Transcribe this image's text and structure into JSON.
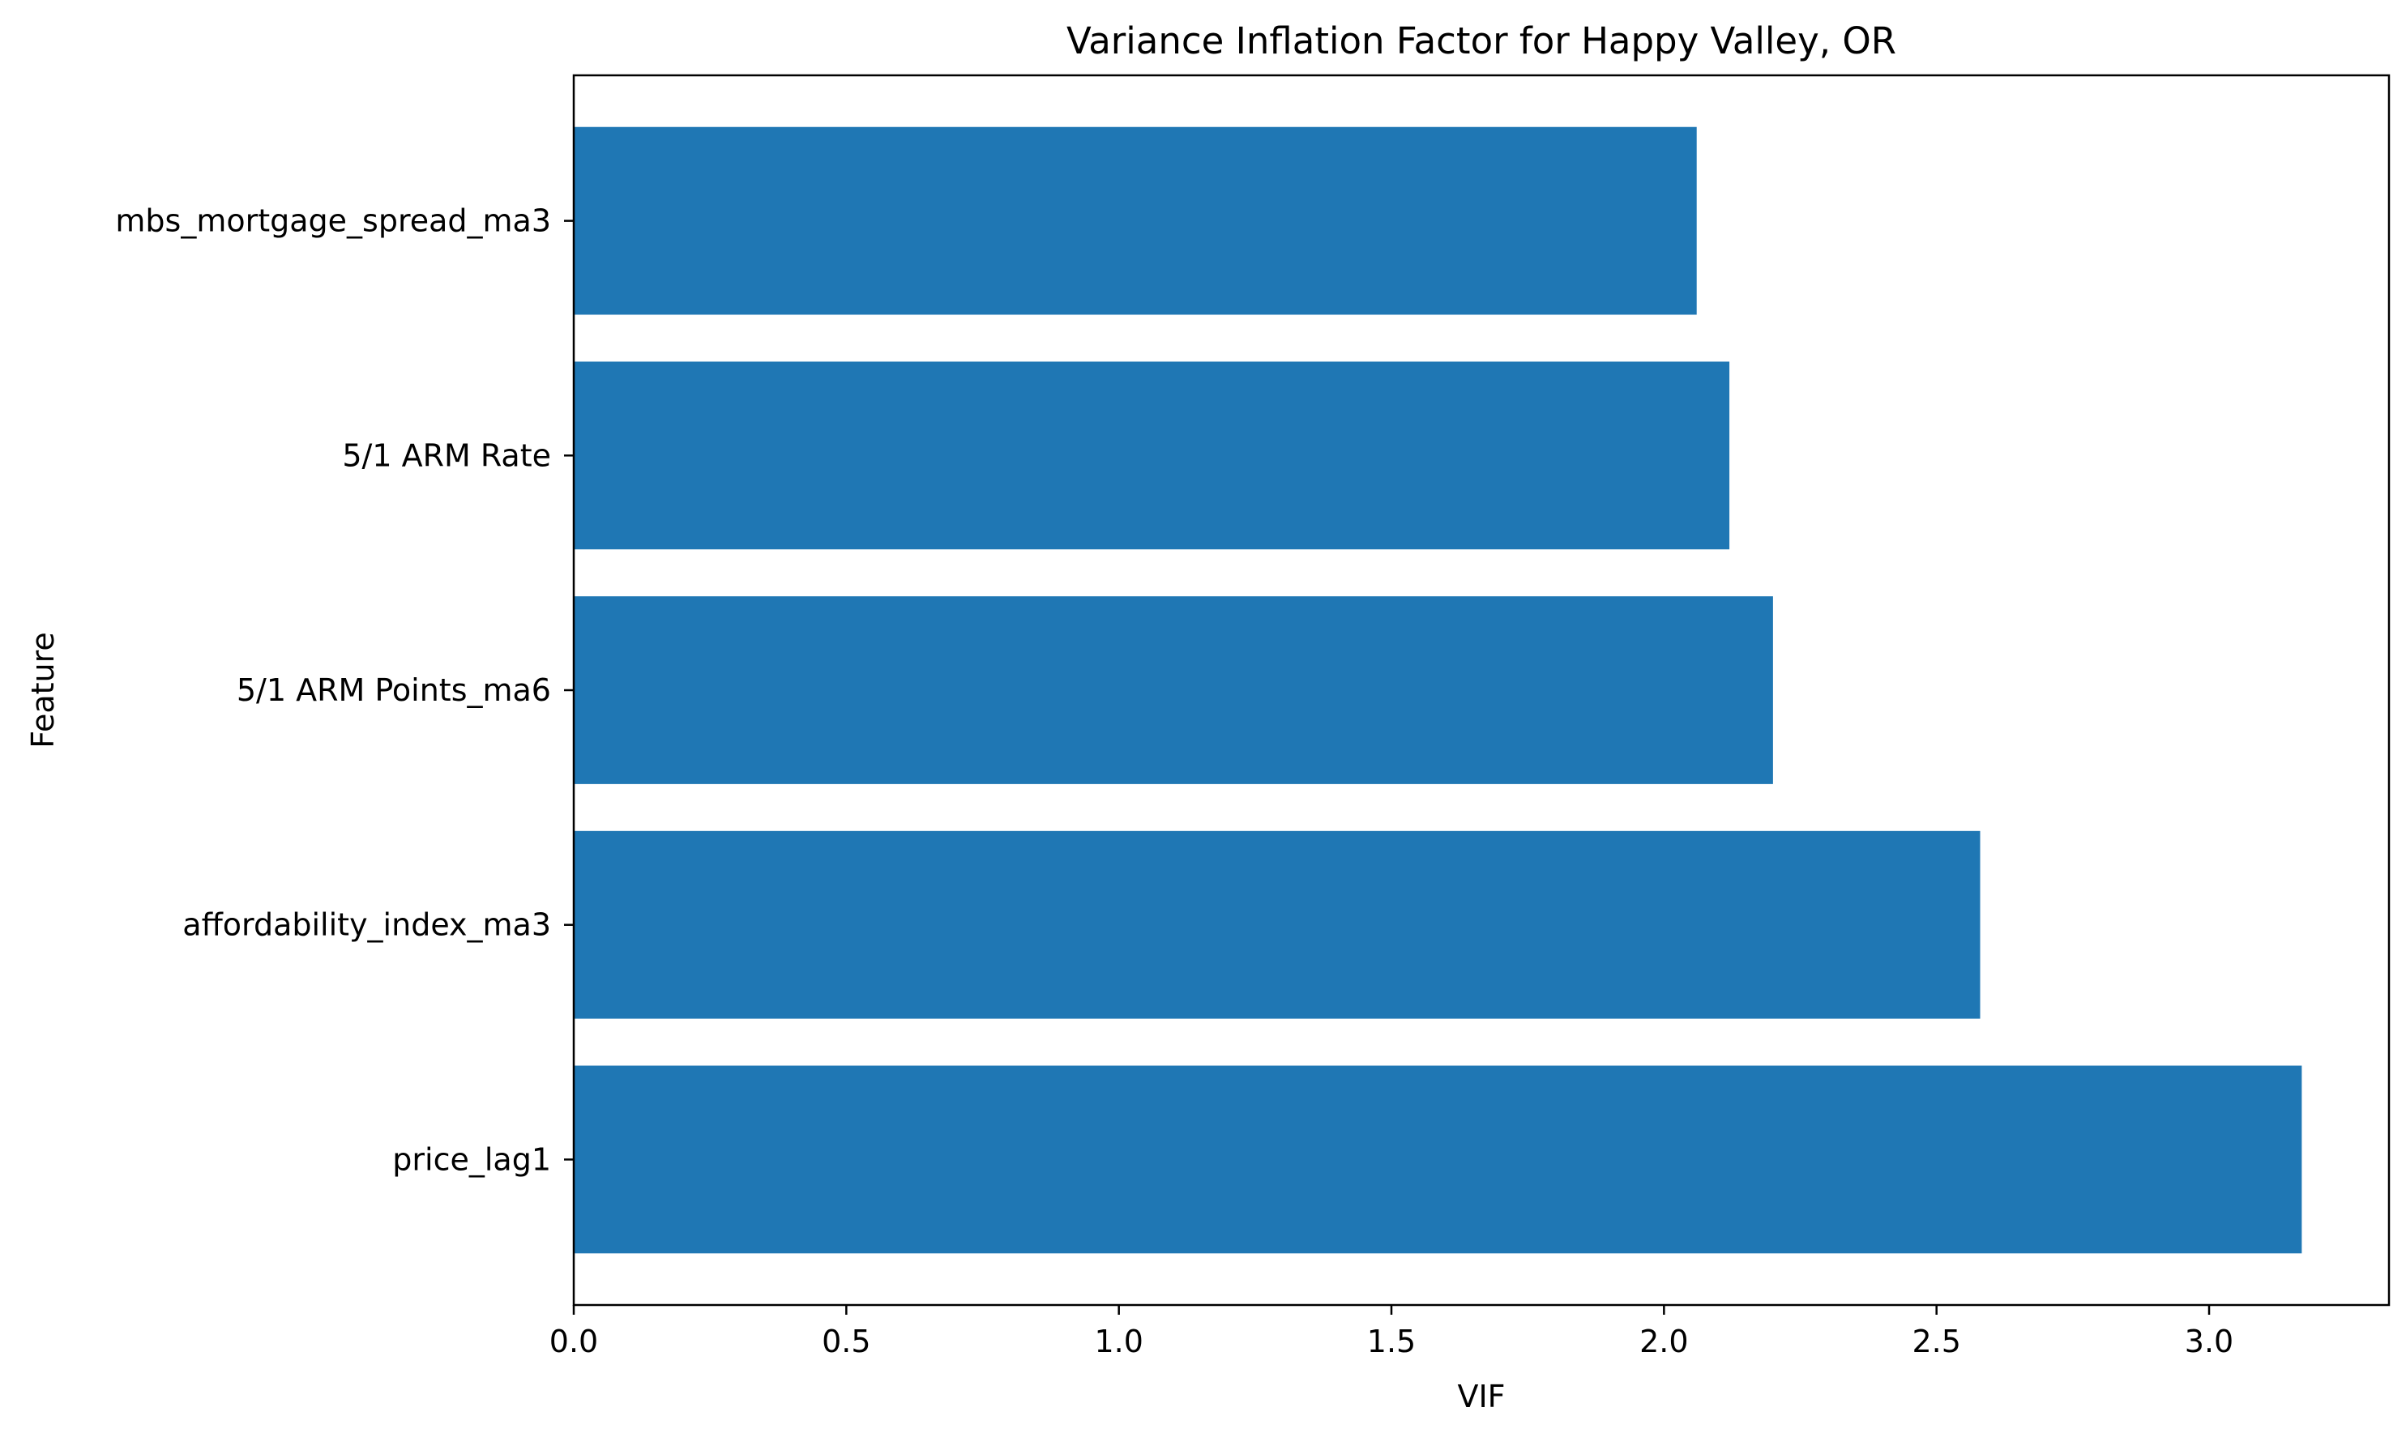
{
  "chart_data": {
    "type": "bar",
    "orientation": "horizontal",
    "title": "Variance Inflation Factor for Happy Valley, OR",
    "xlabel": "VIF",
    "ylabel": "Feature",
    "categories": [
      "price_lag1",
      "affordability_index_ma3",
      "5/1 ARM Points_ma6",
      "5/1 ARM Rate",
      "mbs_mortgage_spread_ma3"
    ],
    "values": [
      3.17,
      2.58,
      2.2,
      2.12,
      2.06
    ],
    "xlim": [
      0,
      3.33
    ],
    "xticks": [
      0.0,
      0.5,
      1.0,
      1.5,
      2.0,
      2.5,
      3.0
    ],
    "xtick_labels": [
      "0.0",
      "0.5",
      "1.0",
      "1.5",
      "2.0",
      "2.5",
      "3.0"
    ],
    "grid": false,
    "bar_color": "#1f77b4"
  }
}
